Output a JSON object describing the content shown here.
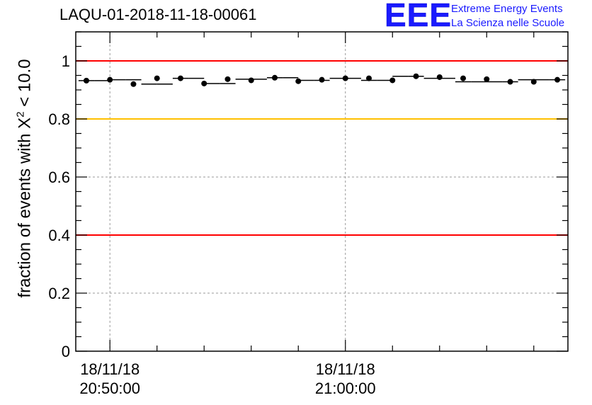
{
  "title": "LAQU-01-2018-11-18-00061",
  "logo": {
    "mark": "EEE",
    "line1": "Extreme Energy Events",
    "line2": "La Scienza nelle Scuole"
  },
  "chart_data": {
    "type": "scatter",
    "title": "LAQU-01-2018-11-18-00061",
    "xlabel": "",
    "ylabel": "fraction of events with χ² < 10.0",
    "ylabel_parts": {
      "before": "fraction of events with X",
      "sup": "2",
      "after": " < 10.0"
    },
    "ylim": [
      0,
      1.1
    ],
    "yticks": [
      0,
      0.2,
      0.4,
      0.6,
      0.8,
      1
    ],
    "ytick_labels": [
      "0",
      "0.2",
      "0.4",
      "0.6",
      "0.8",
      "1"
    ],
    "xlim_minutes": [
      -1.45,
      19.45
    ],
    "x_unit": "minutes after 20:50:00",
    "xticks": [
      {
        "minutes": 0,
        "line1": "18/11/18",
        "line2": "20:50:00"
      },
      {
        "minutes": 10,
        "line1": "18/11/18",
        "line2": "21:00:00"
      }
    ],
    "bin_width_minutes": 0.6667,
    "grid": true,
    "reference_lines": [
      {
        "y": 1.0,
        "color": "#ff0000"
      },
      {
        "y": 0.8,
        "color": "#ffc000"
      },
      {
        "y": 0.4,
        "color": "#ff0000"
      }
    ],
    "series": [
      {
        "name": "fraction",
        "x": [
          -1.0,
          -0.333,
          0.333,
          1.0,
          1.667,
          2.333,
          3.0,
          3.667,
          4.333,
          5.0,
          5.667,
          6.333,
          7.0,
          7.667,
          8.333,
          9.0,
          9.667,
          10.333,
          11.0,
          11.667,
          12.333,
          13.0,
          13.667,
          14.333,
          15.0,
          15.667,
          16.333,
          17.0,
          17.667,
          18.333,
          19.0
        ],
        "y": [
          0.932,
          0.932,
          0.935,
          0.935,
          0.92,
          0.92,
          0.94,
          0.94,
          0.922,
          0.922,
          0.937,
          0.937,
          0.942,
          0.942,
          0.933,
          0.933,
          0.94,
          0.94,
          0.933,
          0.933,
          0.947,
          0.947,
          0.94,
          0.94,
          0.928,
          0.928,
          0.928,
          0.928,
          0.935,
          0.935,
          0.935
        ]
      }
    ],
    "markers_x": [
      -1.0,
      0.0,
      1.0,
      2.0,
      3.0,
      4.0,
      5.0,
      6.0,
      7.0,
      8.0,
      9.0,
      10.0,
      11.0,
      12.0,
      13.0,
      14.0,
      15.0,
      16.0,
      17.0,
      18.0,
      19.0
    ],
    "markers_y": [
      0.932,
      0.935,
      0.92,
      0.94,
      0.94,
      0.922,
      0.937,
      0.933,
      0.942,
      0.93,
      0.935,
      0.94,
      0.94,
      0.933,
      0.947,
      0.944,
      0.94,
      0.937,
      0.928,
      0.928,
      0.935
    ]
  },
  "colors": {
    "logo": "#1a1aff",
    "red_line": "#ff0000",
    "yellow_line": "#ffc000",
    "grid": "#999999",
    "marker": "#000000"
  }
}
